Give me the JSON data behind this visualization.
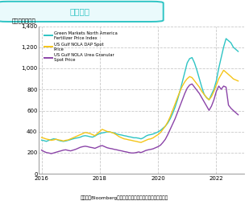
{
  "title": "肥料価格",
  "subtitle": "（ドル／トン）",
  "footer": "（出所：Bloombergより住友商事グローバルリサーチ作成）",
  "title_color": "#2ec4c4",
  "title_border_color": "#2ec4c4",
  "title_bg_color": "#eafafc",
  "background_color": "#ffffff",
  "ylim": [
    0,
    1400
  ],
  "yticks": [
    0,
    200,
    400,
    600,
    800,
    1000,
    1200,
    1400
  ],
  "xlim_start": 2015.9,
  "xlim_end": 2022.95,
  "xtick_labels": [
    "2016",
    "2018",
    "2020",
    "2022"
  ],
  "xtick_positions": [
    2016,
    2018,
    2020,
    2022
  ],
  "series": [
    {
      "label": "Green Markets North America\nFertilizer Price Index",
      "color": "#2ec4c4",
      "linewidth": 1.0
    },
    {
      "label": "US Gulf NOLA DAP Spot\nPrice",
      "color": "#f5c518",
      "linewidth": 1.0
    },
    {
      "label": "US Gulf NOLA Urea Granular\nSpot Price",
      "color": "#8b44a8",
      "linewidth": 1.0
    }
  ],
  "grid_color": "#bbbbbb",
  "grid_linestyle": "--",
  "grid_alpha": 0.8
}
